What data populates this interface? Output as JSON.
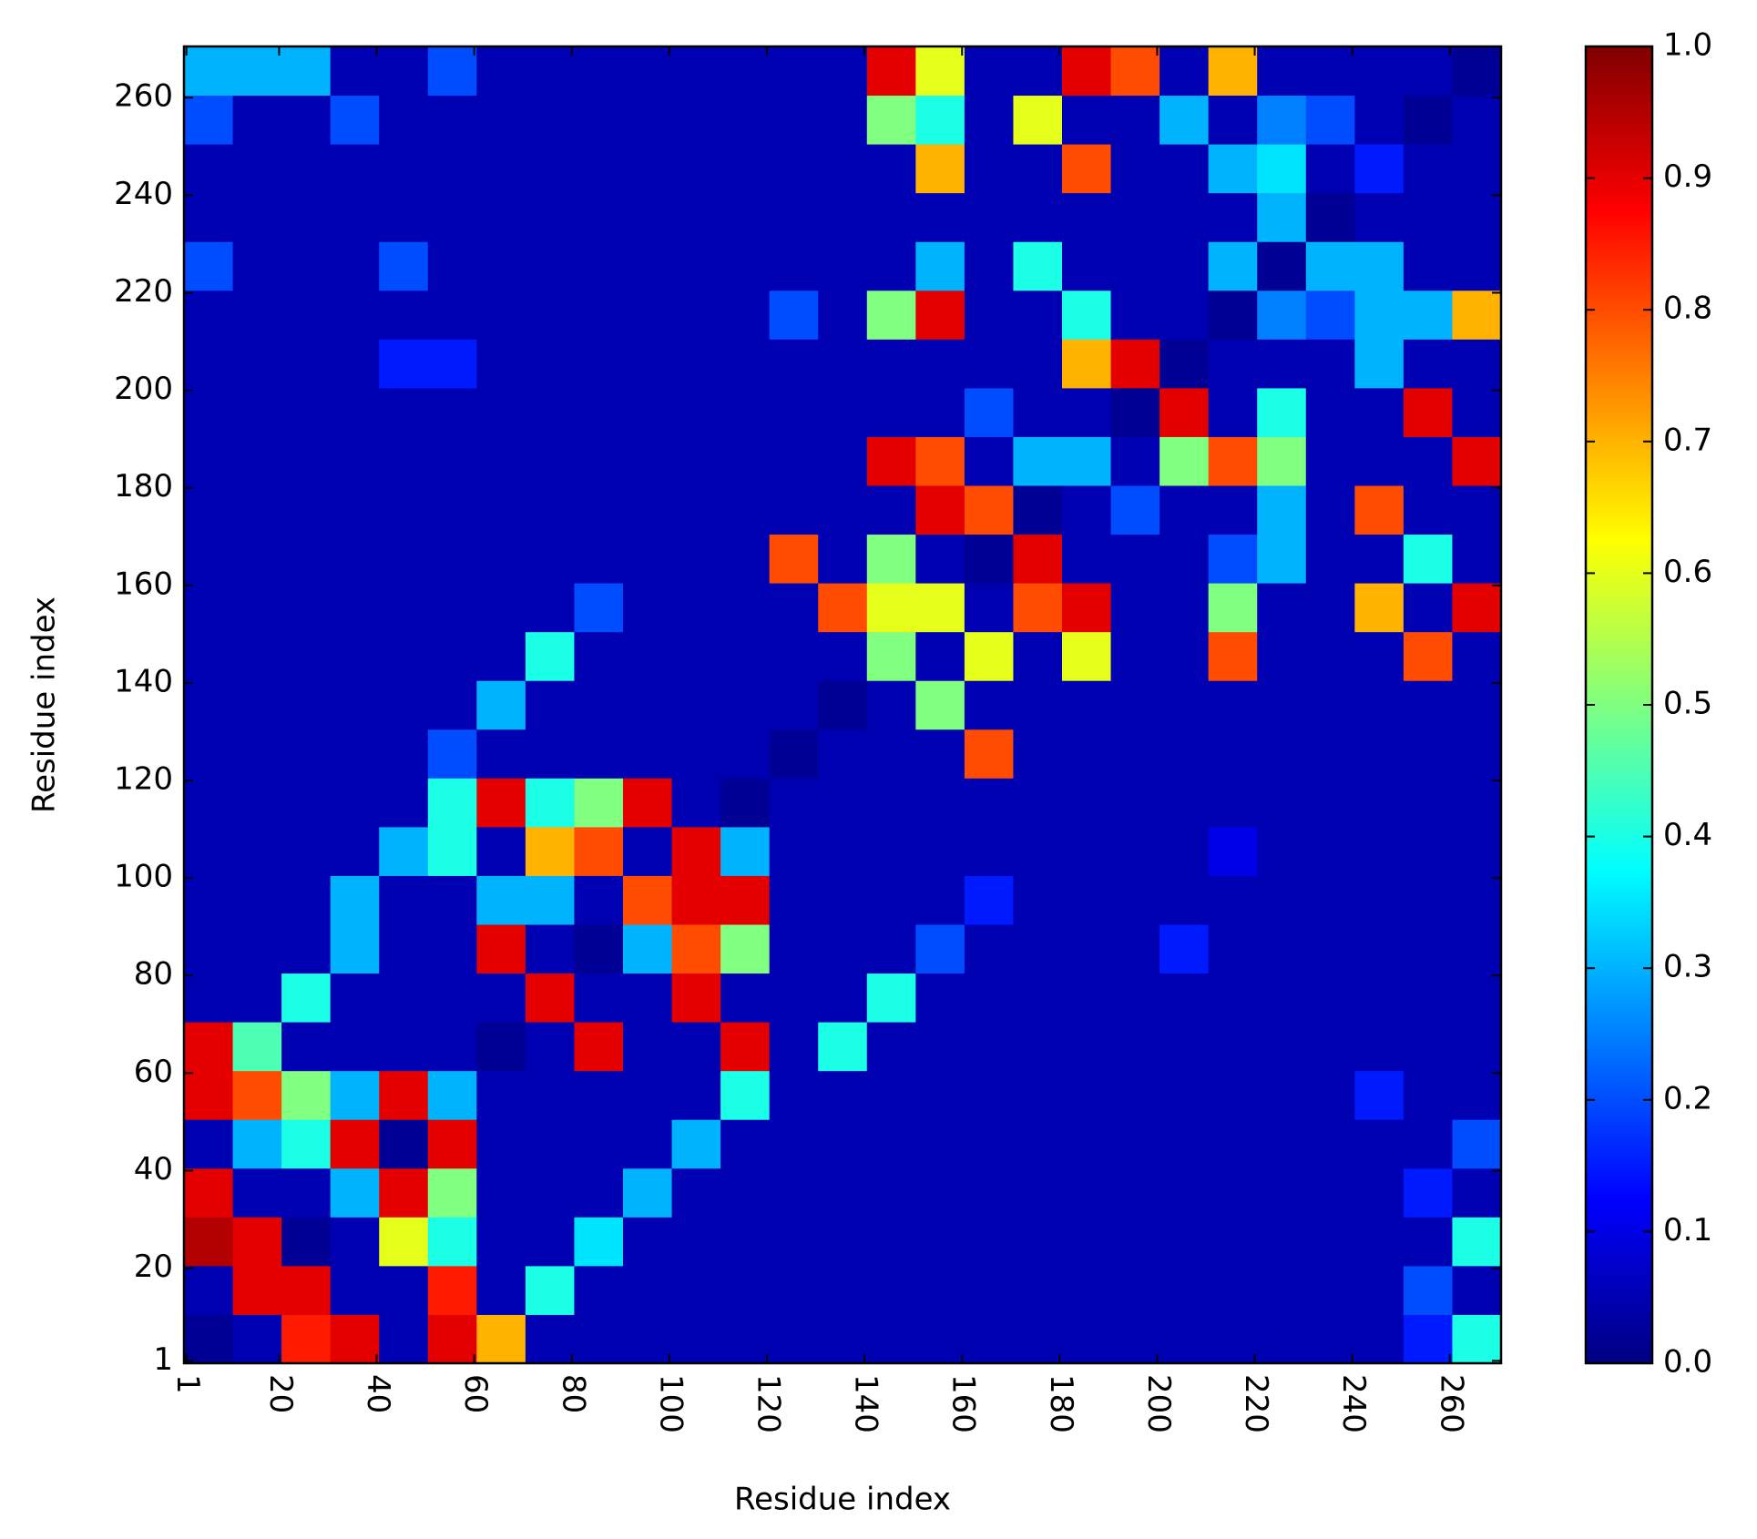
{
  "chart_data": {
    "type": "heatmap",
    "xlabel": "Residue index",
    "ylabel": "Residue index",
    "colormap": "jet",
    "x": [
      5.5,
      15.5,
      25.5,
      35.5,
      45.5,
      55.5,
      65.5,
      75.5,
      85.5,
      95.5,
      105.5,
      115.5,
      125.5,
      135.5,
      145.5,
      155.5,
      165.5,
      175.5,
      185.5,
      195.5,
      205.5,
      215.5,
      225.5,
      235.5,
      245.5,
      255.5,
      265.5
    ],
    "y": [
      5.5,
      15.5,
      25.5,
      35.5,
      45.5,
      55.5,
      65.5,
      75.5,
      85.5,
      95.5,
      105.5,
      115.5,
      125.5,
      135.5,
      145.5,
      155.5,
      165.5,
      175.5,
      185.5,
      195.5,
      205.5,
      215.5,
      225.5,
      235.5,
      245.5,
      255.5,
      265.5
    ],
    "z": [
      [
        0.02,
        0.05,
        0.85,
        0.9,
        0.05,
        0.9,
        0.7,
        0.05,
        0.05,
        0.05,
        0.05,
        0.05,
        0.05,
        0.05,
        0.05,
        0.05,
        0.05,
        0.05,
        0.05,
        0.05,
        0.05,
        0.05,
        0.05,
        0.05,
        0.05,
        0.15,
        0.4
      ],
      [
        0.05,
        0.9,
        0.9,
        0.05,
        0.05,
        0.85,
        0.05,
        0.4,
        0.05,
        0.05,
        0.05,
        0.05,
        0.05,
        0.05,
        0.05,
        0.05,
        0.05,
        0.05,
        0.05,
        0.05,
        0.05,
        0.05,
        0.05,
        0.05,
        0.05,
        0.2,
        0.05
      ],
      [
        0.95,
        0.9,
        0.02,
        0.05,
        0.6,
        0.4,
        0.05,
        0.05,
        0.35,
        0.05,
        0.05,
        0.05,
        0.05,
        0.05,
        0.05,
        0.05,
        0.05,
        0.05,
        0.05,
        0.05,
        0.05,
        0.05,
        0.05,
        0.05,
        0.05,
        0.05,
        0.4
      ],
      [
        0.9,
        0.05,
        0.05,
        0.3,
        0.9,
        0.5,
        0.05,
        0.05,
        0.05,
        0.3,
        0.05,
        0.05,
        0.05,
        0.05,
        0.05,
        0.05,
        0.05,
        0.05,
        0.05,
        0.05,
        0.05,
        0.05,
        0.05,
        0.05,
        0.05,
        0.15,
        0.05
      ],
      [
        0.05,
        0.3,
        0.4,
        0.9,
        0.02,
        0.9,
        0.05,
        0.05,
        0.05,
        0.05,
        0.3,
        0.05,
        0.05,
        0.05,
        0.05,
        0.05,
        0.05,
        0.05,
        0.05,
        0.05,
        0.05,
        0.05,
        0.05,
        0.05,
        0.05,
        0.05,
        0.2
      ],
      [
        0.9,
        0.8,
        0.5,
        0.3,
        0.9,
        0.3,
        0.05,
        0.05,
        0.05,
        0.05,
        0.05,
        0.4,
        0.05,
        0.05,
        0.05,
        0.05,
        0.05,
        0.05,
        0.05,
        0.05,
        0.05,
        0.05,
        0.05,
        0.05,
        0.15,
        0.05,
        0.05
      ],
      [
        0.9,
        0.45,
        0.05,
        0.05,
        0.05,
        0.05,
        0.02,
        0.05,
        0.9,
        0.05,
        0.05,
        0.9,
        0.05,
        0.4,
        0.05,
        0.05,
        0.05,
        0.05,
        0.05,
        0.05,
        0.05,
        0.05,
        0.05,
        0.05,
        0.05,
        0.05,
        0.05
      ],
      [
        0.05,
        0.05,
        0.4,
        0.05,
        0.05,
        0.05,
        0.05,
        0.9,
        0.05,
        0.05,
        0.9,
        0.05,
        0.05,
        0.05,
        0.4,
        0.05,
        0.05,
        0.05,
        0.05,
        0.05,
        0.05,
        0.05,
        0.05,
        0.05,
        0.05,
        0.05,
        0.05
      ],
      [
        0.05,
        0.05,
        0.05,
        0.3,
        0.05,
        0.05,
        0.9,
        0.05,
        0.02,
        0.3,
        0.8,
        0.5,
        0.05,
        0.05,
        0.05,
        0.2,
        0.05,
        0.05,
        0.05,
        0.05,
        0.15,
        0.05,
        0.05,
        0.05,
        0.05,
        0.05,
        0.05
      ],
      [
        0.05,
        0.05,
        0.05,
        0.3,
        0.05,
        0.05,
        0.3,
        0.3,
        0.05,
        0.8,
        0.9,
        0.9,
        0.05,
        0.05,
        0.05,
        0.05,
        0.15,
        0.05,
        0.05,
        0.05,
        0.05,
        0.05,
        0.05,
        0.05,
        0.05,
        0.05,
        0.05
      ],
      [
        0.05,
        0.05,
        0.05,
        0.05,
        0.3,
        0.4,
        0.05,
        0.7,
        0.8,
        0.05,
        0.9,
        0.3,
        0.05,
        0.05,
        0.05,
        0.05,
        0.05,
        0.05,
        0.05,
        0.05,
        0.05,
        0.1,
        0.05,
        0.05,
        0.05,
        0.05,
        0.05
      ],
      [
        0.05,
        0.05,
        0.05,
        0.05,
        0.05,
        0.4,
        0.9,
        0.4,
        0.5,
        0.9,
        0.05,
        0.02,
        0.05,
        0.05,
        0.05,
        0.05,
        0.05,
        0.05,
        0.05,
        0.05,
        0.05,
        0.05,
        0.05,
        0.05,
        0.05,
        0.05,
        0.05
      ],
      [
        0.05,
        0.05,
        0.05,
        0.05,
        0.05,
        0.2,
        0.05,
        0.05,
        0.05,
        0.05,
        0.05,
        0.05,
        0.02,
        0.05,
        0.05,
        0.05,
        0.8,
        0.05,
        0.05,
        0.05,
        0.05,
        0.05,
        0.05,
        0.05,
        0.05,
        0.05,
        0.05
      ],
      [
        0.05,
        0.05,
        0.05,
        0.05,
        0.05,
        0.05,
        0.3,
        0.05,
        0.05,
        0.05,
        0.05,
        0.05,
        0.05,
        0.02,
        0.05,
        0.5,
        0.05,
        0.05,
        0.05,
        0.05,
        0.05,
        0.05,
        0.05,
        0.05,
        0.05,
        0.05,
        0.05
      ],
      [
        0.05,
        0.05,
        0.05,
        0.05,
        0.05,
        0.05,
        0.05,
        0.4,
        0.05,
        0.05,
        0.05,
        0.05,
        0.05,
        0.05,
        0.5,
        0.05,
        0.6,
        0.05,
        0.6,
        0.05,
        0.05,
        0.8,
        0.05,
        0.05,
        0.05,
        0.8,
        0.05
      ],
      [
        0.05,
        0.05,
        0.05,
        0.05,
        0.05,
        0.05,
        0.05,
        0.05,
        0.2,
        0.05,
        0.05,
        0.05,
        0.05,
        0.8,
        0.6,
        0.6,
        0.05,
        0.8,
        0.9,
        0.05,
        0.05,
        0.5,
        0.05,
        0.05,
        0.7,
        0.05,
        0.9
      ],
      [
        0.05,
        0.05,
        0.05,
        0.05,
        0.05,
        0.05,
        0.05,
        0.05,
        0.05,
        0.05,
        0.05,
        0.05,
        0.8,
        0.05,
        0.5,
        0.05,
        0.02,
        0.9,
        0.05,
        0.05,
        0.05,
        0.2,
        0.3,
        0.05,
        0.05,
        0.4,
        0.05
      ],
      [
        0.05,
        0.05,
        0.05,
        0.05,
        0.05,
        0.05,
        0.05,
        0.05,
        0.05,
        0.05,
        0.05,
        0.05,
        0.05,
        0.05,
        0.05,
        0.9,
        0.8,
        0.02,
        0.05,
        0.2,
        0.05,
        0.05,
        0.3,
        0.05,
        0.8,
        0.05,
        0.05
      ],
      [
        0.05,
        0.05,
        0.05,
        0.05,
        0.05,
        0.05,
        0.05,
        0.05,
        0.05,
        0.05,
        0.05,
        0.05,
        0.05,
        0.05,
        0.9,
        0.8,
        0.05,
        0.3,
        0.3,
        0.05,
        0.5,
        0.8,
        0.5,
        0.05,
        0.05,
        0.05,
        0.9
      ],
      [
        0.05,
        0.05,
        0.05,
        0.05,
        0.05,
        0.05,
        0.05,
        0.05,
        0.05,
        0.05,
        0.05,
        0.05,
        0.05,
        0.05,
        0.05,
        0.05,
        0.2,
        0.05,
        0.05,
        0.02,
        0.9,
        0.05,
        0.4,
        0.05,
        0.05,
        0.9,
        0.05
      ],
      [
        0.05,
        0.05,
        0.05,
        0.05,
        0.15,
        0.15,
        0.05,
        0.05,
        0.05,
        0.05,
        0.05,
        0.05,
        0.05,
        0.05,
        0.05,
        0.05,
        0.05,
        0.05,
        0.7,
        0.9,
        0.02,
        0.05,
        0.05,
        0.05,
        0.3,
        0.05,
        0.05
      ],
      [
        0.05,
        0.05,
        0.05,
        0.05,
        0.05,
        0.05,
        0.05,
        0.05,
        0.05,
        0.05,
        0.05,
        0.05,
        0.2,
        0.05,
        0.5,
        0.9,
        0.05,
        0.05,
        0.4,
        0.05,
        0.05,
        0.02,
        0.25,
        0.2,
        0.3,
        0.3,
        0.7
      ],
      [
        0.2,
        0.05,
        0.05,
        0.05,
        0.2,
        0.05,
        0.05,
        0.05,
        0.05,
        0.05,
        0.05,
        0.05,
        0.05,
        0.05,
        0.05,
        0.3,
        0.05,
        0.4,
        0.05,
        0.05,
        0.05,
        0.3,
        0.02,
        0.3,
        0.3,
        0.05,
        0.05
      ],
      [
        0.05,
        0.05,
        0.05,
        0.05,
        0.05,
        0.05,
        0.05,
        0.05,
        0.05,
        0.05,
        0.05,
        0.05,
        0.05,
        0.05,
        0.05,
        0.05,
        0.05,
        0.05,
        0.05,
        0.05,
        0.05,
        0.05,
        0.3,
        0.02,
        0.05,
        0.05,
        0.05
      ],
      [
        0.05,
        0.05,
        0.05,
        0.05,
        0.05,
        0.05,
        0.05,
        0.05,
        0.05,
        0.05,
        0.05,
        0.05,
        0.05,
        0.05,
        0.05,
        0.7,
        0.05,
        0.05,
        0.8,
        0.05,
        0.05,
        0.3,
        0.35,
        0.05,
        0.15,
        0.05,
        0.05
      ],
      [
        0.2,
        0.05,
        0.05,
        0.2,
        0.05,
        0.05,
        0.05,
        0.05,
        0.05,
        0.05,
        0.05,
        0.05,
        0.05,
        0.05,
        0.5,
        0.4,
        0.05,
        0.6,
        0.05,
        0.05,
        0.3,
        0.05,
        0.25,
        0.2,
        0.05,
        0.02,
        0.05
      ],
      [
        0.3,
        0.3,
        0.3,
        0.05,
        0.05,
        0.2,
        0.05,
        0.05,
        0.05,
        0.05,
        0.05,
        0.05,
        0.05,
        0.05,
        0.9,
        0.6,
        0.05,
        0.05,
        0.9,
        0.8,
        0.05,
        0.7,
        0.05,
        0.05,
        0.05,
        0.05,
        0.02
      ]
    ],
    "xlim": [
      0.5,
      270.5
    ],
    "ylim": [
      0.5,
      270.5
    ],
    "xticks": [
      1,
      20,
      40,
      60,
      80,
      100,
      120,
      140,
      160,
      180,
      200,
      220,
      240,
      260
    ],
    "yticks": [
      1,
      20,
      40,
      60,
      80,
      100,
      120,
      140,
      160,
      180,
      200,
      220,
      240,
      260
    ],
    "zlim": [
      0,
      1
    ],
    "zticks": [
      {
        "value": 0,
        "label": "0.0"
      },
      0.1,
      0.2,
      0.3,
      0.4,
      0.5,
      0.6,
      0.7,
      0.8,
      0.9,
      {
        "value": 1,
        "label": "1.0"
      }
    ]
  }
}
